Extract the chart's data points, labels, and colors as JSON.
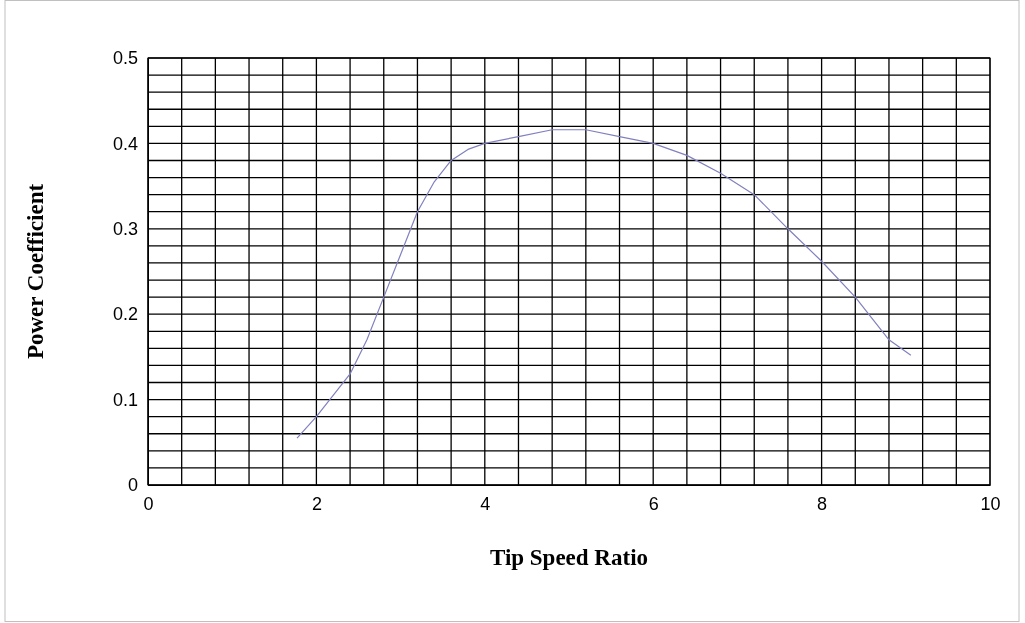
{
  "chart_data": {
    "type": "line",
    "xlabel": "Tip Speed Ratio",
    "ylabel": "Power Coefficient",
    "xlim": [
      0,
      10
    ],
    "ylim": [
      0,
      0.5
    ],
    "xticks": [
      0,
      {
        "value": 0.4,
        "label": null
      },
      {
        "value": 0.8,
        "label": null
      },
      {
        "value": 1.2,
        "label": null
      },
      {
        "value": 1.6,
        "label": null
      },
      2,
      {
        "value": 2.4,
        "label": null
      },
      {
        "value": 2.8,
        "label": null
      },
      {
        "value": 3.2,
        "label": null
      },
      {
        "value": 3.6,
        "label": null
      },
      4,
      {
        "value": 4.4,
        "label": null
      },
      {
        "value": 4.8,
        "label": null
      },
      {
        "value": 5.2,
        "label": null
      },
      {
        "value": 5.6,
        "label": null
      },
      6,
      {
        "value": 6.4,
        "label": null
      },
      {
        "value": 6.8,
        "label": null
      },
      {
        "value": 7.2,
        "label": null
      },
      {
        "value": 7.6,
        "label": null
      },
      8,
      {
        "value": 8.4,
        "label": null
      },
      {
        "value": 8.8,
        "label": null
      },
      {
        "value": 9.2,
        "label": null
      },
      {
        "value": 9.6,
        "label": null
      },
      10
    ],
    "yticks": [
      0,
      {
        "value": 0.02,
        "label": null
      },
      {
        "value": 0.04,
        "label": null
      },
      {
        "value": 0.06,
        "label": null
      },
      {
        "value": 0.08,
        "label": null
      },
      0.1,
      {
        "value": 0.12,
        "label": null
      },
      {
        "value": 0.14,
        "label": null
      },
      {
        "value": 0.16,
        "label": null
      },
      {
        "value": 0.18,
        "label": null
      },
      0.2,
      {
        "value": 0.22,
        "label": null
      },
      {
        "value": 0.24,
        "label": null
      },
      {
        "value": 0.26,
        "label": null
      },
      {
        "value": 0.28,
        "label": null
      },
      0.3,
      {
        "value": 0.32,
        "label": null
      },
      {
        "value": 0.34,
        "label": null
      },
      {
        "value": 0.36,
        "label": null
      },
      {
        "value": 0.38,
        "label": null
      },
      0.4,
      {
        "value": 0.42,
        "label": null
      },
      {
        "value": 0.44,
        "label": null
      },
      {
        "value": 0.46,
        "label": null
      },
      {
        "value": 0.48,
        "label": null
      },
      0.5
    ],
    "grid": true,
    "marker": "none",
    "line_style": "solid",
    "series": [
      {
        "color": "#8080c0",
        "x": [
          1.77,
          2.0,
          2.4,
          2.6,
          2.8,
          3.0,
          3.2,
          3.4,
          3.6,
          3.8,
          4.0,
          4.4,
          4.8,
          5.2,
          5.6,
          6.0,
          6.4,
          6.8,
          7.2,
          7.6,
          8.0,
          8.4,
          8.8,
          9.06
        ],
        "values": [
          0.055,
          0.08,
          0.13,
          0.17,
          0.22,
          0.27,
          0.32,
          0.355,
          0.38,
          0.393,
          0.4,
          0.408,
          0.416,
          0.416,
          0.408,
          0.4,
          0.386,
          0.365,
          0.34,
          0.3,
          0.262,
          0.22,
          0.17,
          0.152
        ]
      }
    ]
  }
}
